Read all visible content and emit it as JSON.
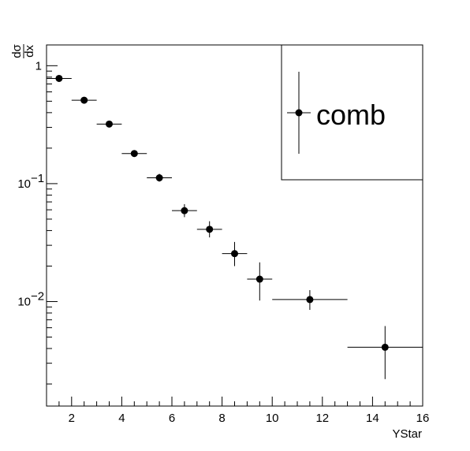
{
  "chart_data": {
    "type": "scatter",
    "title": "",
    "xlabel": "YStar",
    "ylabel_numerator": "dσ",
    "ylabel_denominator": "dx",
    "xlim": [
      1,
      16
    ],
    "ylim": [
      0.0013,
      1.5
    ],
    "y_scale": "log",
    "grid": false,
    "x_ticks": [
      2,
      4,
      6,
      8,
      10,
      12,
      14,
      16
    ],
    "x_tick_labels": [
      "2",
      "4",
      "6",
      "8",
      "10",
      "12",
      "14",
      "16"
    ],
    "y_tick_labels": [
      {
        "value": 1,
        "mantissa": "1",
        "exponent": ""
      },
      {
        "value": 0.1,
        "mantissa": "10",
        "exponent": "−1"
      },
      {
        "value": 0.01,
        "mantissa": "10",
        "exponent": "−2"
      }
    ],
    "legend_placement": "top-right",
    "series": [
      {
        "name": "comb",
        "color": "#000000",
        "points": [
          {
            "x": 1.5,
            "xerr": 0.5,
            "y": 0.78,
            "ylow": 0.76,
            "yhigh": 0.8
          },
          {
            "x": 2.5,
            "xerr": 0.5,
            "y": 0.51,
            "ylow": 0.49,
            "yhigh": 0.53
          },
          {
            "x": 3.5,
            "xerr": 0.5,
            "y": 0.32,
            "ylow": 0.305,
            "yhigh": 0.335
          },
          {
            "x": 4.5,
            "xerr": 0.5,
            "y": 0.18,
            "ylow": 0.17,
            "yhigh": 0.19
          },
          {
            "x": 5.5,
            "xerr": 0.5,
            "y": 0.112,
            "ylow": 0.104,
            "yhigh": 0.121
          },
          {
            "x": 6.5,
            "xerr": 0.5,
            "y": 0.059,
            "ylow": 0.052,
            "yhigh": 0.067
          },
          {
            "x": 7.5,
            "xerr": 0.5,
            "y": 0.041,
            "ylow": 0.035,
            "yhigh": 0.048
          },
          {
            "x": 8.5,
            "xerr": 0.5,
            "y": 0.0255,
            "ylow": 0.02,
            "yhigh": 0.032
          },
          {
            "x": 9.5,
            "xerr": 0.5,
            "y": 0.0155,
            "ylow": 0.0102,
            "yhigh": 0.0215
          },
          {
            "x": 11.5,
            "xerr": 1.5,
            "y": 0.0104,
            "ylow": 0.0085,
            "yhigh": 0.0125
          },
          {
            "x": 14.5,
            "xerr": 1.5,
            "y": 0.0041,
            "ylow": 0.0022,
            "yhigh": 0.0062
          }
        ]
      }
    ]
  }
}
